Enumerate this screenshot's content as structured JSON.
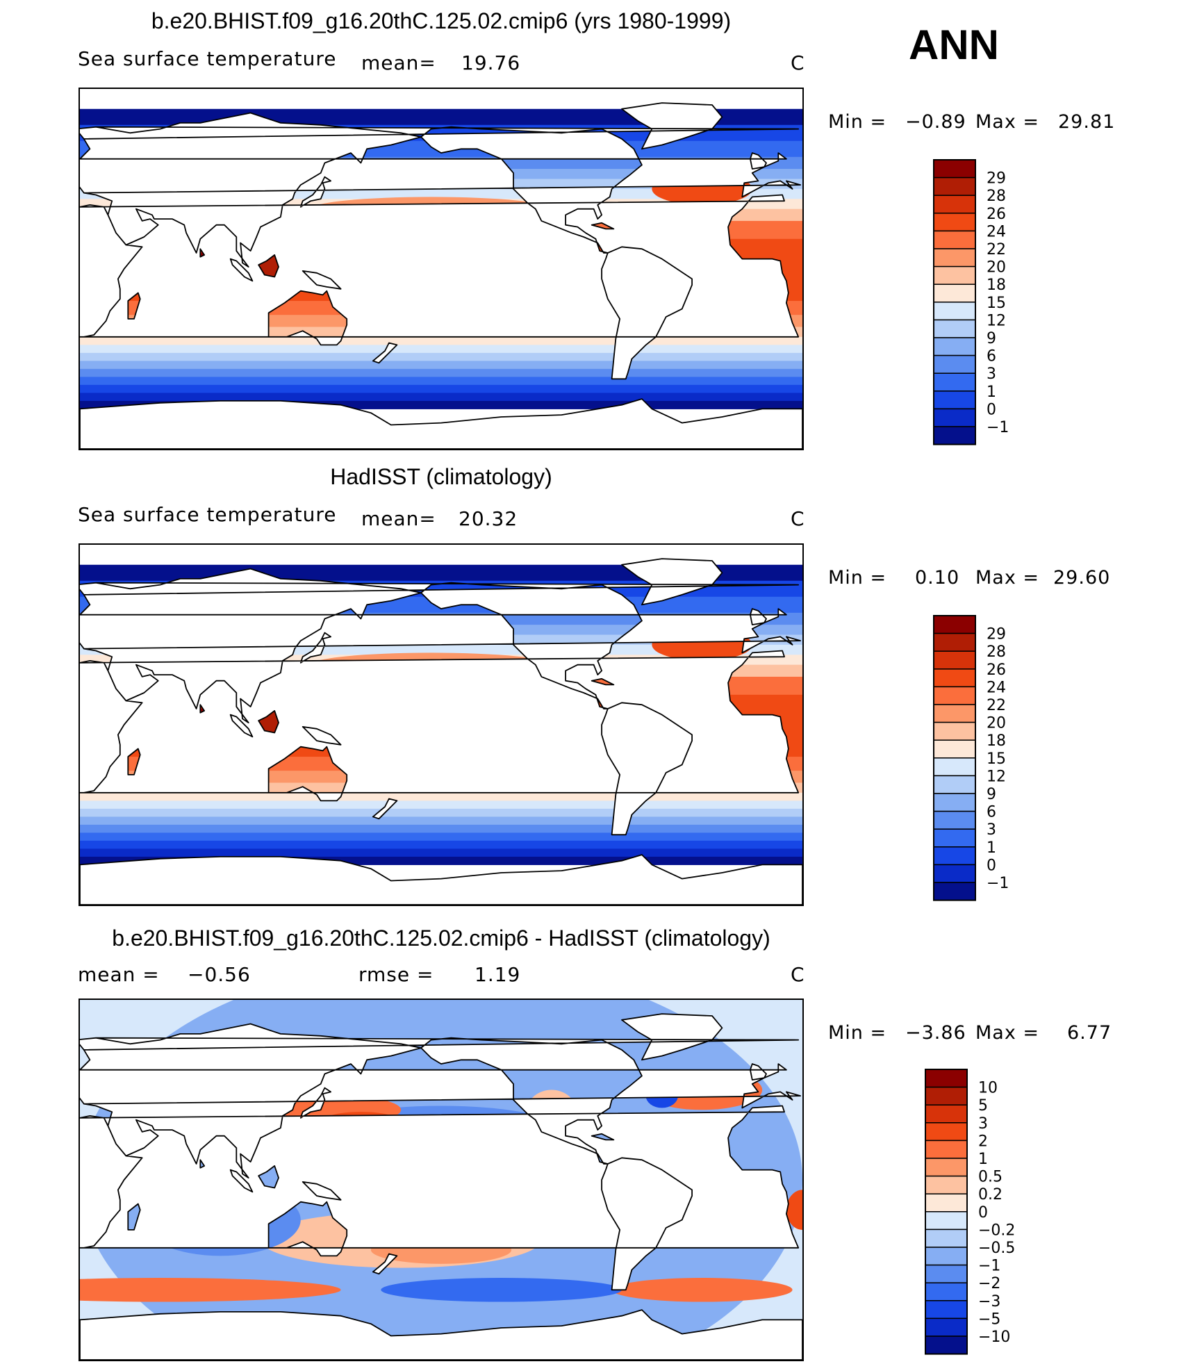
{
  "annotation": "ANN",
  "chart_data": [
    {
      "type": "heatmap",
      "title": "b.e20.BHIST.f09_g16.20thC.125.02.cmip6 (yrs 1980-1999)",
      "variable": "Sea surface temperature",
      "mean_label": "mean=",
      "mean_value": "19.76",
      "units": "C",
      "min_label": "Min =",
      "min_value": "−0.89",
      "max_label": "Max =",
      "max_value": "29.81",
      "colorbar": {
        "levels": [
          "29",
          "28",
          "26",
          "24",
          "22",
          "20",
          "18",
          "15",
          "12",
          "9",
          "6",
          "3",
          "1",
          "0",
          "−1"
        ],
        "colors": [
          "#8b0000",
          "#b01e05",
          "#d7330a",
          "#f04a14",
          "#fb6e3c",
          "#fc9768",
          "#fdc2a1",
          "#fde8d8",
          "#d7e8fb",
          "#b1cdf7",
          "#86aef3",
          "#5b8cf0",
          "#336af0",
          "#1747e6",
          "#0a2bc8",
          "#04108c"
        ]
      }
    },
    {
      "type": "heatmap",
      "title": "HadISST (climatology)",
      "variable": "Sea surface temperature",
      "mean_label": "mean=",
      "mean_value": "20.32",
      "units": "C",
      "min_label": "Min =",
      "min_value": "0.10",
      "max_label": "Max =",
      "max_value": "29.60",
      "colorbar": {
        "levels": [
          "29",
          "28",
          "26",
          "24",
          "22",
          "20",
          "18",
          "15",
          "12",
          "9",
          "6",
          "3",
          "1",
          "0",
          "−1"
        ],
        "colors": [
          "#8b0000",
          "#b01e05",
          "#d7330a",
          "#f04a14",
          "#fb6e3c",
          "#fc9768",
          "#fdc2a1",
          "#fde8d8",
          "#d7e8fb",
          "#b1cdf7",
          "#86aef3",
          "#5b8cf0",
          "#336af0",
          "#1747e6",
          "#0a2bc8",
          "#04108c"
        ]
      }
    },
    {
      "type": "heatmap",
      "title": "b.e20.BHIST.f09_g16.20thC.125.02.cmip6 - HadISST (climatology)",
      "mean_label": "mean =",
      "mean_value": "−0.56",
      "rmse_label": "rmse =",
      "rmse_value": "1.19",
      "units": "C",
      "min_label": "Min =",
      "min_value": "−3.86",
      "max_label": "Max =",
      "max_value": "6.77",
      "colorbar": {
        "levels": [
          "10",
          "5",
          "3",
          "2",
          "1",
          "0.5",
          "0.2",
          "0",
          "−0.2",
          "−0.5",
          "−1",
          "−2",
          "−3",
          "−5",
          "−10"
        ],
        "colors": [
          "#8b0000",
          "#b01e05",
          "#d7330a",
          "#f04a14",
          "#fb6e3c",
          "#fc9768",
          "#fdc2a1",
          "#fde8d8",
          "#d7e8fb",
          "#b1cdf7",
          "#86aef3",
          "#5b8cf0",
          "#336af0",
          "#1747e6",
          "#0a2bc8",
          "#04108c"
        ]
      }
    }
  ]
}
